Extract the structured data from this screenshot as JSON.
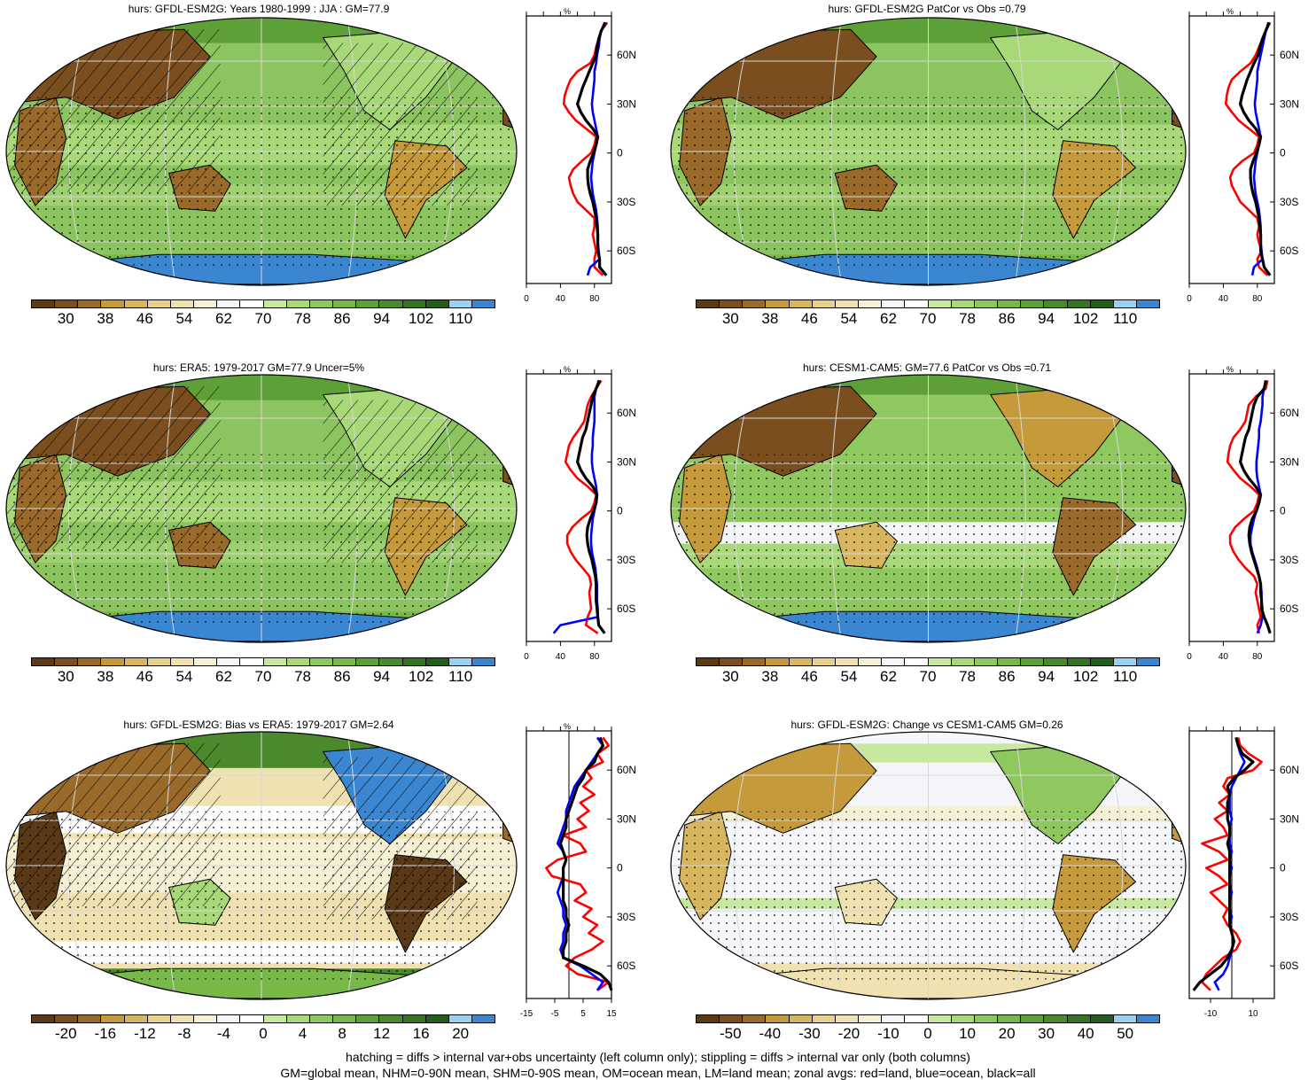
{
  "colors": {
    "land": "#ff0000",
    "ocean": "#0000ff",
    "all": "#000000",
    "abs_palette": [
      "#5a3a16",
      "#7a4e1e",
      "#9a6a2a",
      "#c49a3a",
      "#d8b660",
      "#e6d08a",
      "#f0e2b0",
      "#f6f0d4",
      "#f4f6fa",
      "#ffffff",
      "#c8e8a0",
      "#a8d878",
      "#90c860",
      "#78b848",
      "#5ea038",
      "#4a8a2c",
      "#367424",
      "#245e1c",
      "#9ad0f0",
      "#3a86d0"
    ],
    "diff_palette": [
      "#5a3a16",
      "#7a4e1e",
      "#9a6a2a",
      "#c49a3a",
      "#d8b660",
      "#e6d08a",
      "#f0e2b0",
      "#f6f0d4",
      "#f4f6fa",
      "#ffffff",
      "#c8e8a0",
      "#a8d878",
      "#90c860",
      "#78b848",
      "#5ea038",
      "#4a8a2c",
      "#367424",
      "#245e1c",
      "#9ad0f0",
      "#3a86d0"
    ]
  },
  "panels": [
    {
      "id": "p1",
      "title": "hurs: GFDL-ESM2G: Years 1980-1999 : JJA : GM=77.9",
      "theme": "moist",
      "hatch": true,
      "profile": {
        "unit": "%",
        "xticks": [
          "0",
          "40",
          "80"
        ],
        "xmin": 0,
        "xmax": 100,
        "zero_line": false,
        "lat": [
          80,
          75,
          70,
          65,
          60,
          55,
          50,
          45,
          40,
          35,
          30,
          25,
          20,
          15,
          10,
          5,
          0,
          -5,
          -10,
          -15,
          -20,
          -25,
          -30,
          -35,
          -40,
          -45,
          -50,
          -55,
          -60,
          -65,
          -70,
          -75
        ],
        "land": [
          95,
          88,
          85,
          82,
          80,
          75,
          60,
          52,
          48,
          45,
          44,
          50,
          58,
          70,
          82,
          80,
          76,
          65,
          55,
          50,
          52,
          55,
          60,
          70,
          80,
          80,
          78,
          80,
          82,
          80,
          80,
          90
        ],
        "ocean": [
          92,
          88,
          86,
          85,
          83,
          82,
          80,
          80,
          79,
          78,
          77,
          78,
          80,
          82,
          84,
          82,
          80,
          78,
          77,
          76,
          77,
          78,
          80,
          82,
          83,
          84,
          84,
          84,
          85,
          86,
          75,
          72
        ],
        "all": [
          93,
          88,
          85,
          83,
          82,
          78,
          74,
          70,
          66,
          63,
          60,
          64,
          70,
          78,
          84,
          82,
          79,
          75,
          72,
          72,
          73,
          75,
          78,
          80,
          82,
          83,
          84,
          84,
          84,
          86,
          86,
          94
        ]
      }
    },
    {
      "id": "p2",
      "title": "hurs: GFDL-ESM2G PatCor vs Obs =0.79",
      "theme": "moist",
      "hatch": false,
      "profile": {
        "unit": "%",
        "xticks": [
          "0",
          "40",
          "80"
        ],
        "xmin": 0,
        "xmax": 100,
        "zero_line": false,
        "lat": [
          80,
          75,
          70,
          65,
          60,
          55,
          50,
          45,
          40,
          35,
          30,
          25,
          20,
          15,
          10,
          5,
          0,
          -5,
          -10,
          -15,
          -20,
          -25,
          -30,
          -35,
          -40,
          -45,
          -50,
          -55,
          -60,
          -65,
          -70,
          -75
        ],
        "land": [
          95,
          90,
          86,
          82,
          78,
          72,
          60,
          50,
          46,
          44,
          43,
          50,
          58,
          70,
          82,
          80,
          76,
          62,
          52,
          48,
          50,
          55,
          60,
          70,
          80,
          82,
          80,
          82,
          85,
          80,
          82,
          92
        ],
        "ocean": [
          93,
          90,
          88,
          86,
          84,
          82,
          80,
          80,
          79,
          78,
          77,
          78,
          80,
          82,
          84,
          82,
          80,
          78,
          77,
          76,
          77,
          78,
          80,
          82,
          83,
          84,
          84,
          84,
          85,
          86,
          76,
          74
        ],
        "all": [
          94,
          90,
          86,
          83,
          81,
          76,
          72,
          68,
          65,
          62,
          60,
          64,
          70,
          78,
          84,
          82,
          79,
          75,
          72,
          72,
          73,
          75,
          78,
          80,
          82,
          83,
          84,
          84,
          84,
          86,
          88,
          95
        ]
      }
    },
    {
      "id": "p3",
      "title": "hurs: ERA5: 1979-2017 GM=77.9 Uncer=5%",
      "theme": "moist",
      "hatch": true,
      "profile": {
        "unit": "%",
        "xticks": [
          "0",
          "40",
          "80"
        ],
        "xmin": 0,
        "xmax": 100,
        "zero_line": false,
        "lat": [
          80,
          75,
          70,
          65,
          60,
          55,
          50,
          45,
          40,
          35,
          30,
          25,
          20,
          15,
          10,
          5,
          0,
          -5,
          -10,
          -15,
          -20,
          -25,
          -30,
          -35,
          -40,
          -45,
          -50,
          -55,
          -60,
          -65,
          -70,
          -75
        ],
        "land": [
          88,
          82,
          76,
          72,
          70,
          68,
          62,
          55,
          50,
          48,
          46,
          52,
          60,
          72,
          82,
          80,
          76,
          64,
          54,
          48,
          48,
          52,
          58,
          66,
          74,
          76,
          74,
          75,
          76,
          72,
          70,
          84
        ],
        "ocean": [
          85,
          82,
          80,
          80,
          80,
          80,
          79,
          78,
          78,
          77,
          77,
          78,
          80,
          82,
          83,
          82,
          80,
          78,
          77,
          76,
          76,
          77,
          79,
          81,
          82,
          83,
          83,
          83,
          84,
          84,
          40,
          32
        ],
        "all": [
          86,
          82,
          78,
          76,
          74,
          72,
          70,
          66,
          64,
          62,
          60,
          64,
          70,
          78,
          83,
          82,
          79,
          75,
          72,
          71,
          72,
          74,
          77,
          79,
          81,
          82,
          82,
          82,
          83,
          84,
          85,
          92
        ]
      }
    },
    {
      "id": "p4",
      "title": "hurs: CESM1-CAM5: GM=77.6 PatCor vs Obs =0.71",
      "theme": "dry",
      "hatch": false,
      "profile": {
        "unit": "%",
        "xticks": [
          "0",
          "40",
          "80"
        ],
        "xmin": 0,
        "xmax": 100,
        "zero_line": false,
        "lat": [
          80,
          75,
          70,
          65,
          60,
          55,
          50,
          45,
          40,
          35,
          30,
          25,
          20,
          15,
          10,
          5,
          0,
          -5,
          -10,
          -15,
          -20,
          -25,
          -30,
          -35,
          -40,
          -45,
          -50,
          -55,
          -60,
          -65,
          -70,
          -75
        ],
        "land": [
          92,
          90,
          78,
          70,
          68,
          66,
          60,
          52,
          48,
          46,
          45,
          52,
          60,
          72,
          82,
          80,
          76,
          64,
          54,
          48,
          48,
          52,
          58,
          66,
          76,
          80,
          78,
          80,
          82,
          84,
          80,
          82
        ],
        "ocean": [
          90,
          88,
          86,
          86,
          85,
          84,
          82,
          82,
          81,
          80,
          79,
          79,
          80,
          82,
          84,
          82,
          79,
          76,
          74,
          72,
          72,
          74,
          77,
          80,
          82,
          84,
          85,
          85,
          86,
          86,
          84,
          80
        ],
        "all": [
          90,
          88,
          80,
          76,
          74,
          72,
          70,
          66,
          64,
          62,
          60,
          64,
          70,
          78,
          84,
          82,
          79,
          74,
          71,
          70,
          71,
          73,
          76,
          79,
          82,
          84,
          84,
          85,
          85,
          88,
          92,
          95
        ]
      }
    },
    {
      "id": "p5",
      "title": "hurs: GFDL-ESM2G: Bias vs ERA5: 1979-2017 GM=2.64",
      "theme": "bias",
      "hatch": true,
      "profile": {
        "unit": "%",
        "xticks": [
          "-15",
          "-5",
          "5",
          "15"
        ],
        "xmin": -15,
        "xmax": 15,
        "zero_line": true,
        "lat": [
          80,
          75,
          70,
          65,
          60,
          55,
          50,
          45,
          40,
          35,
          30,
          25,
          20,
          15,
          10,
          5,
          0,
          -5,
          -10,
          -15,
          -20,
          -25,
          -30,
          -35,
          -40,
          -45,
          -50,
          -55,
          -60,
          -65,
          -70,
          -75
        ],
        "land": [
          12,
          14,
          10,
          12,
          6,
          8,
          5,
          9,
          4,
          7,
          3,
          6,
          -2,
          4,
          6,
          -4,
          -8,
          -6,
          4,
          6,
          2,
          8,
          5,
          10,
          7,
          12,
          8,
          2,
          -1,
          3,
          14,
          10
        ],
        "ocean": [
          10,
          12,
          10,
          8,
          6,
          4,
          2,
          1,
          0,
          -1,
          -1,
          -2,
          -3,
          -4,
          -2,
          -1,
          -2,
          -2,
          -3,
          -4,
          -3,
          -2,
          -2,
          -1,
          -2,
          -2,
          -3,
          -2,
          4,
          8,
          12,
          10
        ],
        "all": [
          11,
          12,
          10,
          9,
          6,
          5,
          3,
          2,
          1,
          0,
          -1,
          -1,
          -2,
          -3,
          -2,
          -1,
          -2,
          -2,
          -2,
          -2,
          -2,
          -1,
          -1,
          0,
          -1,
          -1,
          -2,
          -2,
          5,
          11,
          14,
          15
        ]
      }
    },
    {
      "id": "p6",
      "title": "hurs: GFDL-ESM2G: Change vs CESM1-CAM5 GM=0.26",
      "theme": "change",
      "hatch": false,
      "profile": {
        "unit": "",
        "xticks": [
          "-10",
          "10"
        ],
        "xmin": -20,
        "xmax": 20,
        "zero_line": true,
        "lat": [
          80,
          75,
          70,
          65,
          60,
          55,
          50,
          45,
          40,
          35,
          30,
          25,
          20,
          15,
          10,
          5,
          0,
          -5,
          -10,
          -15,
          -20,
          -25,
          -30,
          -35,
          -40,
          -45,
          -50,
          -55,
          -60,
          -65,
          -70,
          -75
        ],
        "land": [
          3,
          4,
          8,
          14,
          10,
          -2,
          -4,
          -1,
          -6,
          -2,
          -8,
          -4,
          -2,
          -14,
          -6,
          -2,
          -12,
          -6,
          -2,
          -10,
          -6,
          -2,
          -4,
          -2,
          2,
          4,
          2,
          -4,
          -8,
          -12,
          -14,
          -10
        ],
        "ocean": [
          2,
          3,
          4,
          6,
          4,
          2,
          0,
          -1,
          -1,
          -1,
          0,
          -1,
          -1,
          -1,
          0,
          -1,
          0,
          -1,
          -1,
          0,
          -1,
          -1,
          0,
          -1,
          0,
          1,
          0,
          -1,
          -2,
          -4,
          -8,
          -6
        ],
        "all": [
          2,
          3,
          5,
          10,
          6,
          1,
          -2,
          -1,
          -2,
          -2,
          -2,
          -1,
          -1,
          -2,
          -1,
          -1,
          -1,
          -1,
          -1,
          -1,
          -1,
          -1,
          -1,
          -1,
          0,
          1,
          0,
          -2,
          -5,
          -10,
          -15,
          -18
        ]
      }
    }
  ],
  "profile_lat_labels": [
    "60N",
    "30N",
    "0",
    "30S",
    "60S"
  ],
  "colorbars": [
    {
      "id": "cb1",
      "labels": [
        "30",
        "38",
        "46",
        "54",
        "62",
        "70",
        "78",
        "86",
        "94",
        "102",
        "110"
      ],
      "palette": "abs"
    },
    {
      "id": "cb2",
      "labels": [
        "30",
        "38",
        "46",
        "54",
        "62",
        "70",
        "78",
        "86",
        "94",
        "102",
        "110"
      ],
      "palette": "abs"
    },
    {
      "id": "cb3",
      "labels": [
        "30",
        "38",
        "46",
        "54",
        "62",
        "70",
        "78",
        "86",
        "94",
        "102",
        "110"
      ],
      "palette": "abs"
    },
    {
      "id": "cb4",
      "labels": [
        "30",
        "38",
        "46",
        "54",
        "62",
        "70",
        "78",
        "86",
        "94",
        "102",
        "110"
      ],
      "palette": "abs"
    },
    {
      "id": "cb5",
      "labels": [
        "-20",
        "-16",
        "-12",
        "-8",
        "-4",
        "0",
        "4",
        "8",
        "12",
        "16",
        "20"
      ],
      "palette": "diff"
    },
    {
      "id": "cb6",
      "labels": [
        "-50",
        "-40",
        "-30",
        "-20",
        "-10",
        "0",
        "10",
        "20",
        "30",
        "40",
        "50"
      ],
      "palette": "diff"
    }
  ],
  "footer": {
    "line1": "hatching = diffs > internal var+obs uncertainty (left column only); stippling = diffs > internal var only (both columns)",
    "line2": "GM=global mean, NHM=0-90N mean, SHM=0-90S mean, OM=ocean mean, LM=land mean; zonal avgs: red=land, blue=ocean, black=all"
  }
}
